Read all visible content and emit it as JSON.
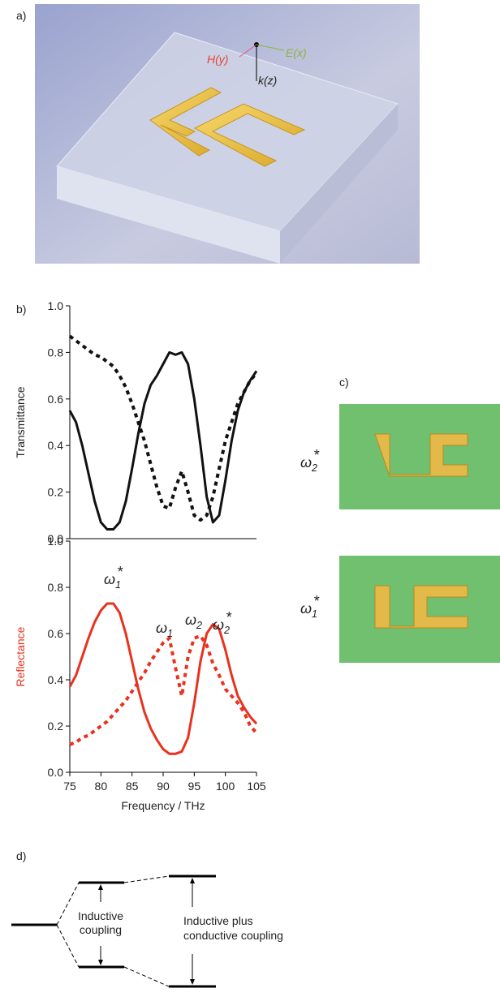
{
  "panel_labels": [
    "a)",
    "b)",
    "c)",
    "d)"
  ],
  "render": {
    "labels": [
      "H(y)",
      "E(x)",
      "k(z)"
    ]
  },
  "chart_data": [
    {
      "type": "line",
      "y_label": "Transmittance",
      "y_label_color": "#222222",
      "x": [
        75,
        76,
        77,
        78,
        79,
        80,
        81,
        82,
        83,
        84,
        85,
        86,
        87,
        88,
        89,
        90,
        91,
        92,
        93,
        94,
        95,
        96,
        97,
        98,
        99,
        100,
        101,
        102,
        103,
        104,
        105
      ],
      "xlim": [
        75,
        105
      ],
      "ylim": [
        0,
        1
      ],
      "yticks": [
        {
          "value": 0,
          "label": "0.0"
        },
        0.2,
        0.4,
        0.6,
        0.8,
        {
          "value": 1,
          "label": "1.0"
        }
      ],
      "series": [
        {
          "color": "#111111",
          "style": "solid",
          "values": [
            0.55,
            0.5,
            0.4,
            0.28,
            0.16,
            0.07,
            0.04,
            0.04,
            0.07,
            0.16,
            0.3,
            0.45,
            0.58,
            0.66,
            0.7,
            0.75,
            0.8,
            0.79,
            0.8,
            0.75,
            0.6,
            0.4,
            0.18,
            0.07,
            0.1,
            0.25,
            0.42,
            0.55,
            0.63,
            0.68,
            0.72
          ]
        },
        {
          "color": "#111111",
          "style": "dashed",
          "values": [
            0.87,
            0.85,
            0.83,
            0.81,
            0.79,
            0.78,
            0.76,
            0.74,
            0.7,
            0.65,
            0.58,
            0.5,
            0.42,
            0.32,
            0.22,
            0.14,
            0.13,
            0.22,
            0.29,
            0.2,
            0.1,
            0.08,
            0.1,
            0.18,
            0.3,
            0.42,
            0.5,
            0.58,
            0.63,
            0.68,
            0.71
          ]
        }
      ]
    },
    {
      "type": "line",
      "y_label": "Reflectance",
      "y_label_color": "#e8321e",
      "x_label": "Frequency / THz",
      "x": [
        75,
        76,
        77,
        78,
        79,
        80,
        81,
        82,
        83,
        84,
        85,
        86,
        87,
        88,
        89,
        90,
        91,
        92,
        93,
        94,
        95,
        96,
        97,
        98,
        99,
        100,
        101,
        102,
        103,
        104,
        105
      ],
      "xlim": [
        75,
        105
      ],
      "ylim": [
        0,
        1
      ],
      "xticks": [
        75,
        80,
        85,
        90,
        95,
        100,
        105
      ],
      "yticks": [
        {
          "value": 0,
          "label": "0.0"
        },
        0.2,
        0.4,
        0.6,
        0.8,
        {
          "value": 1,
          "label": "1.0"
        }
      ],
      "series": [
        {
          "color": "#e8321e",
          "style": "solid",
          "values": [
            0.37,
            0.42,
            0.5,
            0.58,
            0.65,
            0.7,
            0.73,
            0.73,
            0.69,
            0.6,
            0.48,
            0.36,
            0.26,
            0.19,
            0.14,
            0.1,
            0.08,
            0.08,
            0.09,
            0.15,
            0.3,
            0.48,
            0.6,
            0.64,
            0.62,
            0.53,
            0.42,
            0.33,
            0.28,
            0.24,
            0.21
          ]
        },
        {
          "color": "#e8321e",
          "style": "dashed",
          "values": [
            0.12,
            0.13,
            0.15,
            0.16,
            0.18,
            0.2,
            0.22,
            0.25,
            0.28,
            0.31,
            0.35,
            0.39,
            0.43,
            0.48,
            0.52,
            0.56,
            0.58,
            0.45,
            0.33,
            0.5,
            0.58,
            0.59,
            0.55,
            0.47,
            0.42,
            0.36,
            0.33,
            0.3,
            0.26,
            0.2,
            0.17
          ]
        }
      ],
      "annotations": [
        {
          "base": "ω",
          "sub": "1",
          "sup": "*"
        },
        {
          "base": "ω",
          "sub": "1"
        },
        {
          "base": "ω",
          "sub": "2"
        },
        {
          "base": "ω",
          "sub": "2",
          "sup": "*"
        }
      ]
    }
  ],
  "field_maps": [
    {
      "base": "ω",
      "sub": "2",
      "sup": "*"
    },
    {
      "base": "ω",
      "sub": "1",
      "sup": "*"
    }
  ],
  "diagram": {
    "left_label": [
      "Inductive",
      "coupling"
    ],
    "right_label": [
      "Inductive plus",
      "conductive coupling"
    ]
  }
}
